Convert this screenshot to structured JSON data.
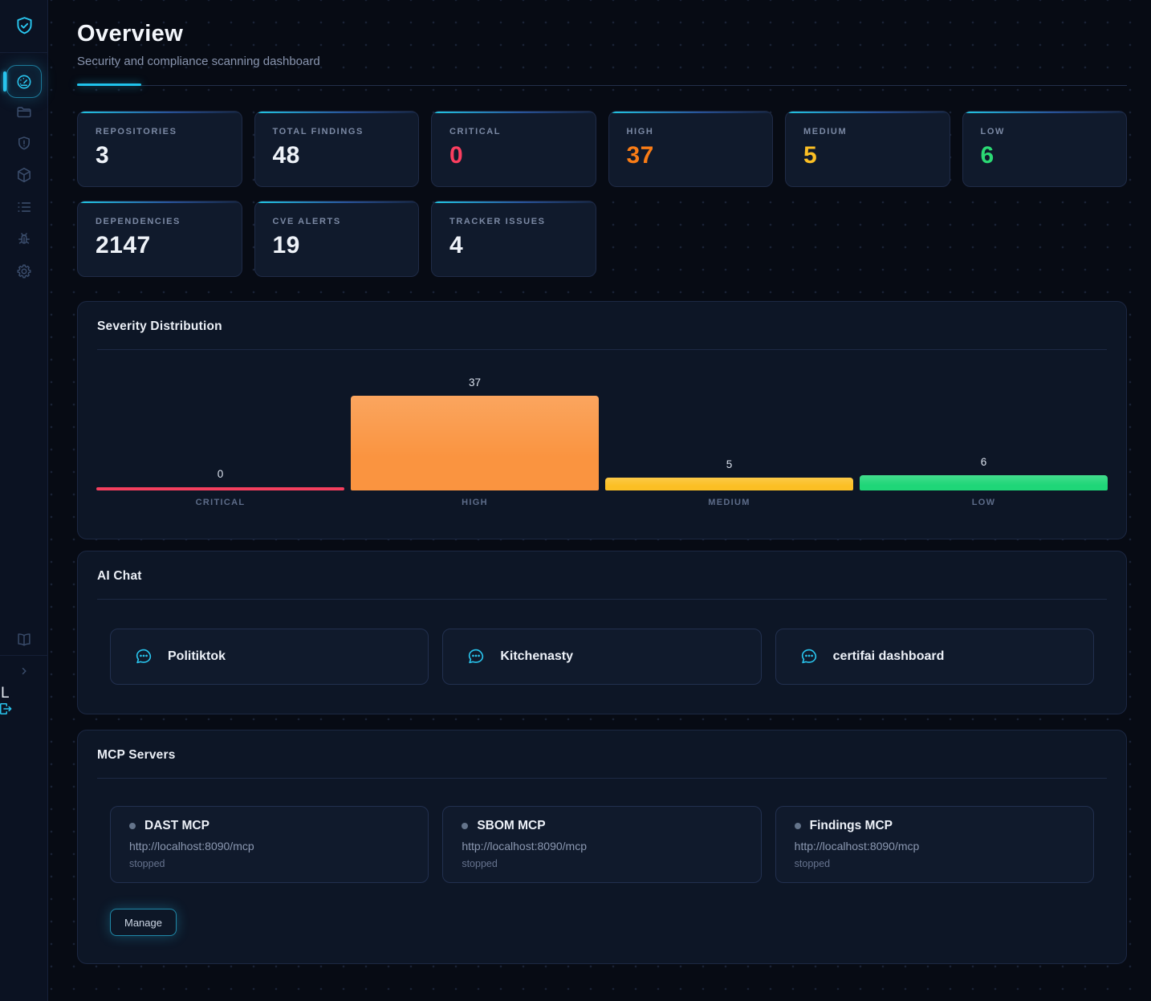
{
  "theme": {
    "accent": "#29c5ee",
    "card_border": "#1f2b47",
    "panel_bg": "#0d1626"
  },
  "sidebar": {
    "logo_icon": "shield-check-icon",
    "nav_icons": [
      "gauge-icon",
      "folder-icon",
      "shield-alert-icon",
      "package-icon",
      "list-icon",
      "bug-icon",
      "gear-icon"
    ],
    "active_nav_icon": "gauge-icon",
    "footer_icons": [
      "book-icon",
      "chevron-right-icon",
      "logout-icon"
    ],
    "user_label": "L"
  },
  "header": {
    "title": "Overview",
    "subtitle": "Security and compliance scanning dashboard"
  },
  "stats": [
    {
      "label": "REPOSITORIES",
      "value": "3",
      "color": "#eef2f8"
    },
    {
      "label": "TOTAL FINDINGS",
      "value": "48",
      "color": "#eef2f8"
    },
    {
      "label": "CRITICAL",
      "value": "0",
      "color": "#fb3e5f"
    },
    {
      "label": "HIGH",
      "value": "37",
      "color": "#f97c16"
    },
    {
      "label": "MEDIUM",
      "value": "5",
      "color": "#fbbf24"
    },
    {
      "label": "LOW",
      "value": "6",
      "color": "#2bd974"
    },
    {
      "label": "DEPENDENCIES",
      "value": "2147",
      "color": "#eef2f8"
    },
    {
      "label": "CVE ALERTS",
      "value": "19",
      "color": "#eef2f8"
    },
    {
      "label": "TRACKER ISSUES",
      "value": "4",
      "color": "#eef2f8"
    }
  ],
  "chart_data": {
    "type": "bar",
    "title": "Severity Distribution",
    "categories": [
      "CRITICAL",
      "HIGH",
      "MEDIUM",
      "LOW"
    ],
    "values": [
      0,
      37,
      5,
      6
    ],
    "colors": [
      "#f43f5e",
      "#fa9440",
      "#fbbf24",
      "#1fd678"
    ],
    "ylim": [
      0,
      37
    ],
    "grid": false,
    "legend": false,
    "value_labels": true
  },
  "ai_chat": {
    "title": "AI Chat",
    "items": [
      {
        "icon": "chat-bubble-icon",
        "label": "Politiktok"
      },
      {
        "icon": "chat-bubble-icon",
        "label": "Kitchenasty"
      },
      {
        "icon": "chat-bubble-icon",
        "label": "certifai dashboard"
      }
    ]
  },
  "mcp": {
    "title": "MCP Servers",
    "servers": [
      {
        "name": "DAST MCP",
        "url": "http://localhost:8090/mcp",
        "status": "stopped"
      },
      {
        "name": "SBOM MCP",
        "url": "http://localhost:8090/mcp",
        "status": "stopped"
      },
      {
        "name": "Findings MCP",
        "url": "http://localhost:8090/mcp",
        "status": "stopped"
      }
    ],
    "manage_label": "Manage"
  }
}
